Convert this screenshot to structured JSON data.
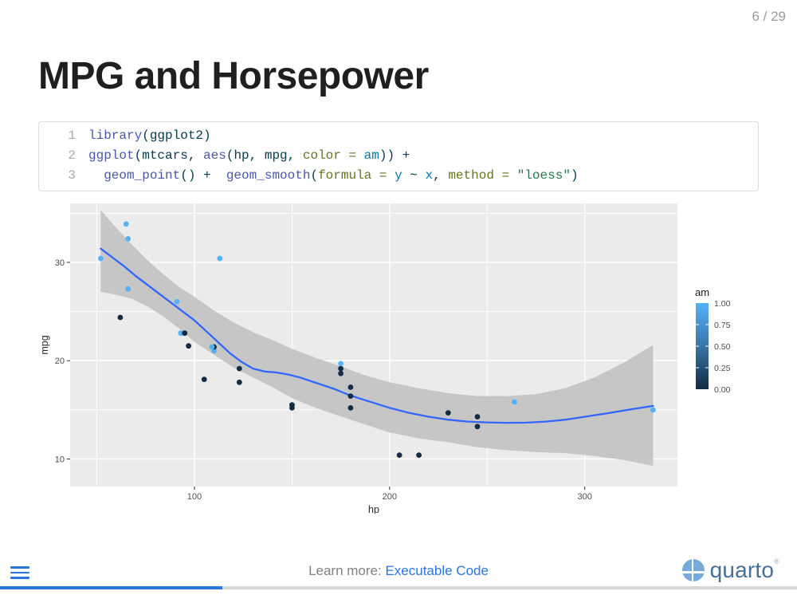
{
  "slide": {
    "number": "6 / 29",
    "title": "MPG and Horsepower"
  },
  "code": {
    "lines": [
      {
        "number": "1",
        "tokens": [
          {
            "c": "fu",
            "t": "library"
          },
          {
            "c": "df",
            "t": "(ggplot2)"
          }
        ]
      },
      {
        "number": "2",
        "tokens": [
          {
            "c": "fu",
            "t": "ggplot"
          },
          {
            "c": "df",
            "t": "(mtcars, "
          },
          {
            "c": "fu",
            "t": "aes"
          },
          {
            "c": "df",
            "t": "(hp, mpg, "
          },
          {
            "c": "at",
            "t": "color ="
          },
          {
            "c": "ot",
            "t": " am"
          },
          {
            "c": "df",
            "t": ")) +"
          }
        ]
      },
      {
        "number": "3",
        "tokens": [
          {
            "c": "df",
            "t": "  "
          },
          {
            "c": "fu",
            "t": "geom_point"
          },
          {
            "c": "df",
            "t": "() +  "
          },
          {
            "c": "fu",
            "t": "geom_smooth"
          },
          {
            "c": "df",
            "t": "("
          },
          {
            "c": "at",
            "t": "formula ="
          },
          {
            "c": "ot",
            "t": " y "
          },
          {
            "c": "df",
            "t": "~"
          },
          {
            "c": "ot",
            "t": " x"
          },
          {
            "c": "df",
            "t": ", "
          },
          {
            "c": "at",
            "t": "method ="
          },
          {
            "c": "st",
            "t": " \"loess\""
          },
          {
            "c": "df",
            "t": ")"
          }
        ]
      }
    ]
  },
  "chart_data": {
    "type": "scatter",
    "xlabel": "hp",
    "ylabel": "mpg",
    "xlim": [
      36.3,
      347.5
    ],
    "ylim": [
      7.2,
      36.0
    ],
    "x_ticks": [
      100,
      200,
      300
    ],
    "y_ticks": [
      10,
      20,
      30
    ],
    "x_minor_ticks": [
      50,
      150,
      250
    ],
    "y_minor_ticks": [
      15,
      25,
      35
    ],
    "grid": "on",
    "legend": {
      "title": "am",
      "labels": [
        "1.00",
        "0.75",
        "0.50",
        "0.25",
        "0.00"
      ],
      "values": [
        1.0,
        0.75,
        0.5,
        0.25,
        0.0
      ],
      "high_color": "#56B1F7",
      "mid_color": "#3A74A6",
      "low_color": "#132B43",
      "position": "right"
    },
    "points_note": "each point is [hp, mpg, am] from mtcars",
    "points": [
      [
        110,
        21.0,
        1
      ],
      [
        110,
        21.0,
        1
      ],
      [
        93,
        22.8,
        1
      ],
      [
        110,
        21.4,
        0
      ],
      [
        175,
        18.7,
        0
      ],
      [
        105,
        18.1,
        0
      ],
      [
        245,
        14.3,
        0
      ],
      [
        62,
        24.4,
        0
      ],
      [
        95,
        22.8,
        0
      ],
      [
        123,
        19.2,
        0
      ],
      [
        123,
        17.8,
        0
      ],
      [
        180,
        16.4,
        0
      ],
      [
        180,
        17.3,
        0
      ],
      [
        180,
        15.2,
        0
      ],
      [
        205,
        10.4,
        0
      ],
      [
        215,
        10.4,
        0
      ],
      [
        230,
        14.7,
        0
      ],
      [
        66,
        32.4,
        1
      ],
      [
        52,
        30.4,
        1
      ],
      [
        65,
        33.9,
        1
      ],
      [
        97,
        21.5,
        0
      ],
      [
        150,
        15.5,
        0
      ],
      [
        150,
        15.2,
        0
      ],
      [
        245,
        13.3,
        0
      ],
      [
        175,
        19.2,
        0
      ],
      [
        66,
        27.3,
        1
      ],
      [
        91,
        26.0,
        1
      ],
      [
        113,
        30.4,
        1
      ],
      [
        264,
        15.8,
        1
      ],
      [
        175,
        19.7,
        1
      ],
      [
        335,
        15.0,
        1
      ],
      [
        109,
        21.4,
        1
      ]
    ],
    "smooth_line": [
      [
        52,
        31.4
      ],
      [
        58,
        30.5
      ],
      [
        64,
        29.6
      ],
      [
        70,
        28.6
      ],
      [
        76,
        27.7
      ],
      [
        82,
        26.8
      ],
      [
        88,
        25.9
      ],
      [
        94,
        25.0
      ],
      [
        100,
        24.1
      ],
      [
        106,
        23.0
      ],
      [
        112,
        21.9
      ],
      [
        118,
        20.8
      ],
      [
        124,
        19.9
      ],
      [
        130,
        19.2
      ],
      [
        136,
        18.9
      ],
      [
        142,
        18.8
      ],
      [
        148,
        18.6
      ],
      [
        154,
        18.3
      ],
      [
        160,
        17.9
      ],
      [
        166,
        17.5
      ],
      [
        172,
        17.1
      ],
      [
        178,
        16.6
      ],
      [
        184,
        16.2
      ],
      [
        192,
        15.7
      ],
      [
        200,
        15.2
      ],
      [
        210,
        14.7
      ],
      [
        220,
        14.3
      ],
      [
        230,
        14.0
      ],
      [
        240,
        13.8
      ],
      [
        250,
        13.72
      ],
      [
        260,
        13.68
      ],
      [
        270,
        13.7
      ],
      [
        280,
        13.8
      ],
      [
        290,
        14.0
      ],
      [
        300,
        14.3
      ],
      [
        310,
        14.6
      ],
      [
        322,
        15.0
      ],
      [
        335,
        15.4
      ]
    ],
    "ribbon_note": "each entry is [hp, lower, upper] of the loess confidence band",
    "ribbon": [
      [
        52,
        27.0,
        35.3
      ],
      [
        60,
        26.7,
        33.5
      ],
      [
        68,
        26.3,
        31.8
      ],
      [
        76,
        25.5,
        30.2
      ],
      [
        84,
        24.5,
        28.8
      ],
      [
        92,
        23.3,
        27.5
      ],
      [
        100,
        21.9,
        26.5
      ],
      [
        110,
        20.6,
        25.1
      ],
      [
        120,
        19.3,
        23.9
      ],
      [
        130,
        18.3,
        22.9
      ],
      [
        140,
        17.3,
        22.1
      ],
      [
        150,
        16.2,
        21.2
      ],
      [
        162,
        15.2,
        20.3
      ],
      [
        174,
        14.4,
        19.5
      ],
      [
        186,
        13.6,
        18.6
      ],
      [
        200,
        12.7,
        17.8
      ],
      [
        215,
        12.1,
        17.2
      ],
      [
        230,
        11.7,
        16.7
      ],
      [
        245,
        11.2,
        16.4
      ],
      [
        260,
        10.9,
        16.4
      ],
      [
        275,
        10.7,
        16.6
      ],
      [
        290,
        10.6,
        17.2
      ],
      [
        305,
        10.3,
        18.3
      ],
      [
        320,
        9.9,
        19.8
      ],
      [
        335,
        9.3,
        21.6
      ]
    ],
    "colors": {
      "panel_bg": "#EBEBEB",
      "grid": "#FFFFFF",
      "ribbon": "#C6C6C6",
      "line": "#3366FF",
      "tick_text": "#4d4d4d",
      "axis_title": "#2b2b2b"
    }
  },
  "footer": {
    "learn_more_label": "Learn more: ",
    "link_label": "Executable Code",
    "brand": "quarto",
    "brand_mark": "®"
  },
  "progress": {
    "percent": 27.9
  }
}
